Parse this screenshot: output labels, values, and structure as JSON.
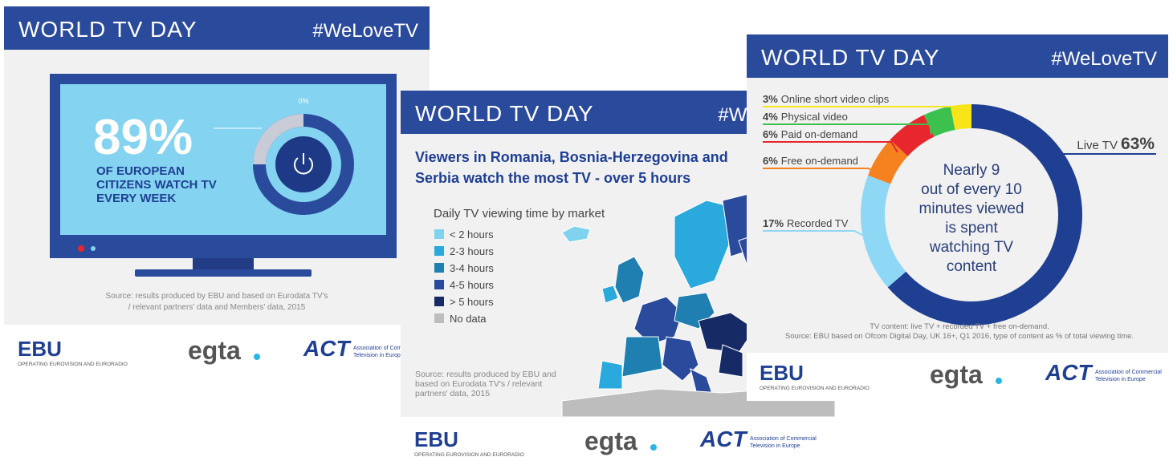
{
  "cards": [
    {
      "header": {
        "title": "WORLD TV DAY",
        "hashtag": "#WeLoveTV"
      },
      "stat": "89%",
      "stat_text": [
        "OF EUROPEAN",
        "CITIZENS WATCH TV",
        "EVERY WEEK"
      ],
      "gauge_label": "0%",
      "source": [
        "Source: results produced by EBU and based on Eurodata TV's",
        "/ relevant partners' data and Members' data, 2015"
      ],
      "logos": {
        "ebu": "EBU",
        "ebu_caption": "OPERATING EUROVISION AND EURORADIO",
        "egta": "egta",
        "act": "ACT",
        "act_caption": [
          "Association of Commercial",
          "Television in Europe"
        ]
      }
    },
    {
      "header": {
        "title": "WORLD TV DAY",
        "hashtag": "#WeLoveTV"
      },
      "headline": [
        "Viewers in Romania, Bosnia-Herzegovina and",
        "Serbia watch the most TV - over 5 hours"
      ],
      "legend_title": "Daily TV viewing time by market",
      "legend": [
        {
          "name": "< 2 hours",
          "color": "#7fd3ef"
        },
        {
          "name": "2-3 hours",
          "color": "#29a9dc"
        },
        {
          "name": "3-4 hours",
          "color": "#1f7fb0"
        },
        {
          "name": "4-5 hours",
          "color": "#2a4a9b"
        },
        {
          "name": "> 5 hours",
          "color": "#162a66"
        },
        {
          "name": "No data",
          "color": "#bdbdbd"
        }
      ],
      "source": [
        "Source: results produced by EBU and",
        "based on Eurodata TV's / relevant",
        "partners' data, 2015"
      ],
      "logos": {
        "ebu": "EBU",
        "ebu_caption": "OPERATING EUROVISION AND EURORADIO",
        "egta": "egta",
        "act": "ACT",
        "act_caption": [
          "Association of Commercial",
          "Television in Europe"
        ]
      }
    },
    {
      "header": {
        "title": "WORLD TV DAY",
        "hashtag": "#WeLoveTV"
      },
      "chart": {
        "type": "donut",
        "segments": [
          {
            "name": "Live TV",
            "value": 63,
            "label": "63%",
            "color": "#1f3f93"
          },
          {
            "name": "Recorded TV",
            "value": 17,
            "label": "17%",
            "color": "#8fd8f5"
          },
          {
            "name": "Free on-demand",
            "value": 6,
            "label": "6%",
            "color": "#f5821f"
          },
          {
            "name": "Paid on-demand",
            "value": 6,
            "label": "6%",
            "color": "#e8262d"
          },
          {
            "name": "Physical video",
            "value": 4,
            "label": "4%",
            "color": "#3cc14e"
          },
          {
            "name": "Online short video clips",
            "value": 3,
            "label": "3%",
            "color": "#f7e51a"
          }
        ],
        "center_text": [
          "Nearly 9",
          "out of every 10",
          "minutes viewed",
          "is spent",
          "watching TV",
          "content"
        ]
      },
      "note": [
        "TV content: live TV + recorded TV + free on-demand.",
        "Source: EBU based on Ofcom Digital Day, UK 16+, Q1 2016, type of content as % of total viewing time."
      ],
      "logos": {
        "ebu": "EBU",
        "ebu_caption": "OPERATING EUROVISION AND EURORADIO",
        "egta": "egta",
        "act": "ACT",
        "act_caption": [
          "Association of Commercial",
          "Television in Europe"
        ]
      }
    }
  ]
}
